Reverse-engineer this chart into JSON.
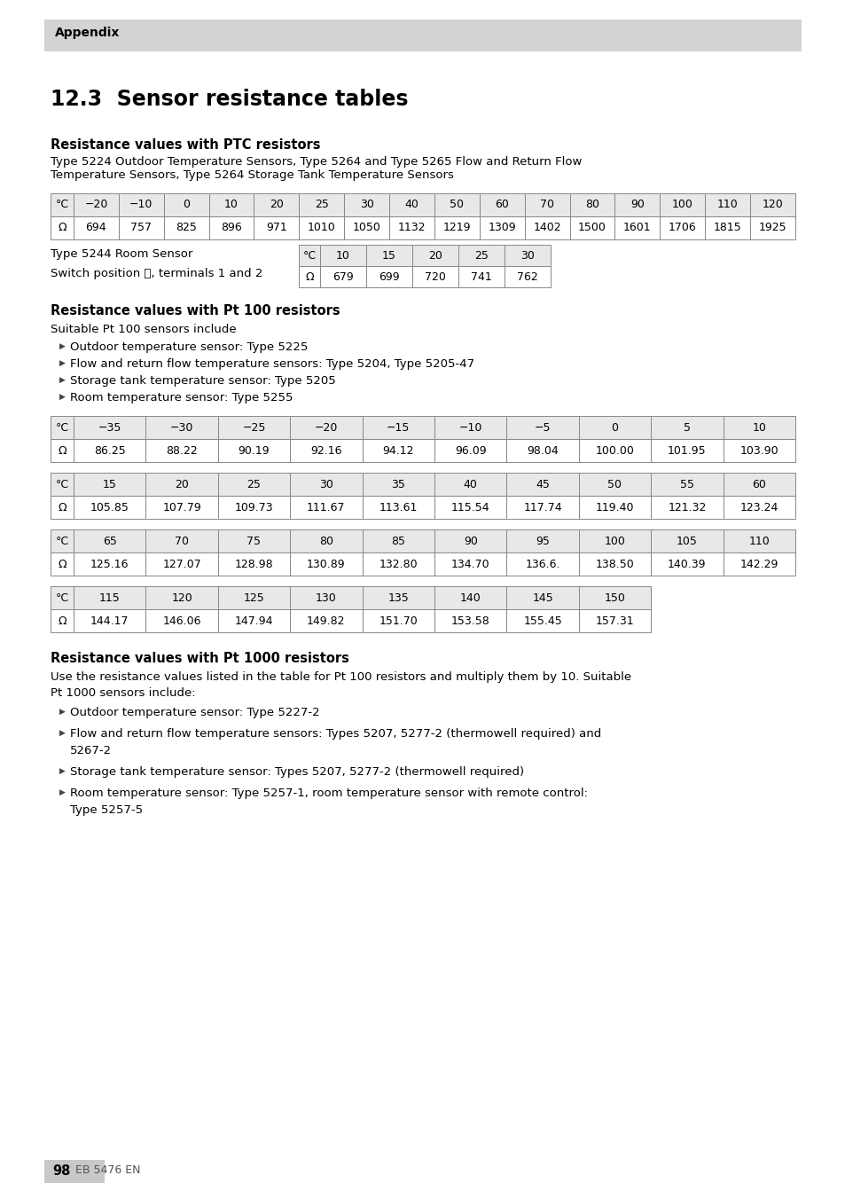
{
  "page_bg": "#ffffff",
  "header_bg": "#d3d3d3",
  "header_text": "Appendix",
  "section_title": "12.3  Sensor resistance tables",
  "ptc_heading": "Resistance values with PTC resistors",
  "ptc_desc": "Type 5224 Outdoor Temperature Sensors, Type 5264 and Type 5265 Flow and Return Flow\nTemperature Sensors, Type 5264 Storage Tank Temperature Sensors",
  "ptc_table1_header": [
    "°C",
    "−20",
    "−10",
    "0",
    "10",
    "20",
    "25",
    "30",
    "40",
    "50",
    "60",
    "70",
    "80",
    "90",
    "100",
    "110",
    "120"
  ],
  "ptc_table1_row": [
    "Ω",
    "694",
    "757",
    "825",
    "896",
    "971",
    "1010",
    "1050",
    "1132",
    "1219",
    "1309",
    "1402",
    "1500",
    "1601",
    "1706",
    "1815",
    "1925"
  ],
  "room_sensor_label1": "Type 5244 Room Sensor",
  "room_sensor_label2": "Switch position ⚆, terminals 1 and 2",
  "ptc_table2_header": [
    "°C",
    "10",
    "15",
    "20",
    "25",
    "30"
  ],
  "ptc_table2_row": [
    "Ω",
    "679",
    "699",
    "720",
    "741",
    "762"
  ],
  "pt100_heading": "Resistance values with Pt 100 resistors",
  "pt100_desc": "Suitable Pt 100 sensors include",
  "pt100_bullets": [
    "Outdoor temperature sensor: Type 5225",
    "Flow and return flow temperature sensors: Type 5204, Type 5205-47",
    "Storage tank temperature sensor: Type 5205",
    "Room temperature sensor: Type 5255"
  ],
  "pt100_tables": [
    {
      "header": [
        "°C",
        "−35",
        "−30",
        "−25",
        "−20",
        "−15",
        "−10",
        "−5",
        "0",
        "5",
        "10"
      ],
      "row": [
        "Ω",
        "86.25",
        "88.22",
        "90.19",
        "92.16",
        "94.12",
        "96.09",
        "98.04",
        "100.00",
        "101.95",
        "103.90"
      ]
    },
    {
      "header": [
        "°C",
        "15",
        "20",
        "25",
        "30",
        "35",
        "40",
        "45",
        "50",
        "55",
        "60"
      ],
      "row": [
        "Ω",
        "105.85",
        "107.79",
        "109.73",
        "111.67",
        "113.61",
        "115.54",
        "117.74",
        "119.40",
        "121.32",
        "123.24"
      ]
    },
    {
      "header": [
        "°C",
        "65",
        "70",
        "75",
        "80",
        "85",
        "90",
        "95",
        "100",
        "105",
        "110"
      ],
      "row": [
        "Ω",
        "125.16",
        "127.07",
        "128.98",
        "130.89",
        "132.80",
        "134.70",
        "136.6.",
        "138.50",
        "140.39",
        "142.29"
      ]
    },
    {
      "header": [
        "°C",
        "115",
        "120",
        "125",
        "130",
        "135",
        "140",
        "145",
        "150"
      ],
      "row": [
        "Ω",
        "144.17",
        "146.06",
        "147.94",
        "149.82",
        "151.70",
        "153.58",
        "155.45",
        "157.31"
      ]
    }
  ],
  "pt1000_heading": "Resistance values with Pt 1000 resistors",
  "pt1000_desc1": "Use the resistance values listed in the table for Pt 100 resistors and multiply them by 10. Suitable",
  "pt1000_desc2": "Pt 1000 sensors include:",
  "pt1000_bullets": [
    "Outdoor temperature sensor: Type 5227-2",
    "Flow and return flow temperature sensors: Types 5207, 5277-2 (thermowell required) and\n5267-2",
    "Storage tank temperature sensor: Types 5207, 5277-2 (thermowell required)",
    "Room temperature sensor: Type 5257-1, room temperature sensor with remote control:\nType 5257-5"
  ],
  "footer_number": "98",
  "footer_text": "EB 5476 EN",
  "table_border_color": "#888888",
  "table_header_bg": "#e8e8e8",
  "table_row_bg": "#ffffff"
}
